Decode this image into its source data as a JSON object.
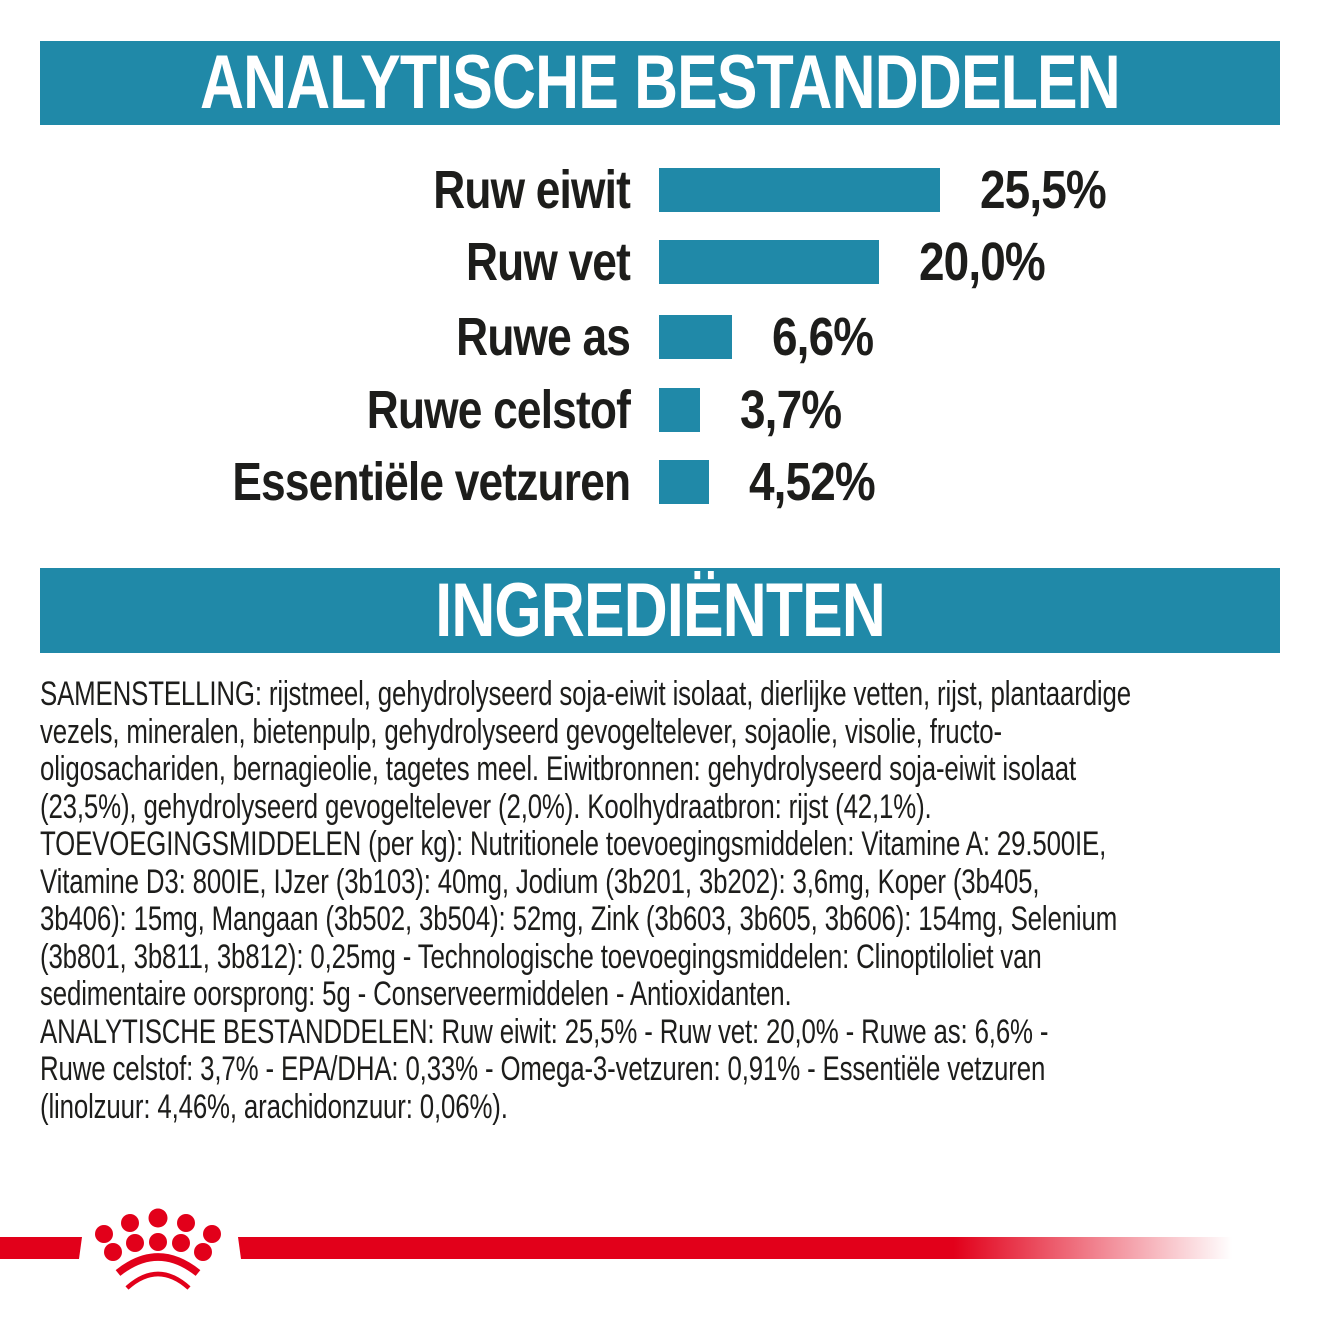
{
  "section_analytical": {
    "title": "ANALYTISCHE BESTANDDELEN",
    "header_color": "#2089A8",
    "title_color": "#ffffff"
  },
  "chart_data": {
    "type": "bar",
    "orientation": "horizontal",
    "title": "ANALYTISCHE BESTANDDELEN",
    "categories": [
      "Ruw eiwit",
      "Ruw vet",
      "Ruwe as",
      "Ruwe celstof",
      "Essentiële vetzuren"
    ],
    "values": [
      25.5,
      20.0,
      6.6,
      3.7,
      4.52
    ],
    "value_labels": [
      "25,5%",
      "20,0%",
      "6,6%",
      "3,7%",
      "4,52%"
    ],
    "unit": "%",
    "xlim": [
      0,
      28
    ],
    "grid": "off",
    "legend": "none",
    "bar_color": "#2089A8",
    "label_color": "#1d1d1b"
  },
  "section_ingredients": {
    "title": "INGREDIËNTEN",
    "header_color": "#2089A8",
    "title_color": "#ffffff"
  },
  "ingredients": {
    "text": "SAMENSTELLING: rijstmeel, gehydrolyseerd soja-eiwit isolaat, dierlijke vetten, rijst, plantaardige\nvezels, mineralen, bietenpulp, gehydrolyseerd gevogeltelever, sojaolie, visolie, fructo-\noligosachariden, bernagieolie, tagetes meel. Eiwitbronnen: gehydrolyseerd soja-eiwit isolaat\n(23,5%), gehydrolyseerd gevogeltelever (2,0%). Koolhydraatbron: rijst (42,1%).\nTOEVOEGINGSMIDDELEN (per kg): Nutritionele toevoegingsmiddelen: Vitamine A: 29.500IE,\nVitamine D3: 800IE, IJzer (3b103): 40mg, Jodium (3b201, 3b202): 3,6mg, Koper (3b405,\n3b406): 15mg, Mangaan (3b502, 3b504): 52mg, Zink (3b603, 3b605, 3b606): 154mg, Selenium\n(3b801, 3b811, 3b812): 0,25mg - Technologische toevoegingsmiddelen: Clinoptiloliet van\nsedimentaire oorsprong: 5g - Conserveermiddelen - Antioxidanten.\nANALYTISCHE BESTANDDELEN: Ruw eiwit: 25,5% - Ruw vet: 20,0% - Ruwe as: 6,6% -\nRuwe celstof: 3,7% - EPA/DHA: 0,33% - Omega-3-vetzuren: 0,91% - Essentiële vetzuren\n(linolzuur: 4,46%, arachidonzuur: 0,06%)."
  },
  "brand": {
    "logo_icon": "royal-canin-crown-icon",
    "logo_color": "#E2001A",
    "stripe_color": "#E2001A"
  }
}
